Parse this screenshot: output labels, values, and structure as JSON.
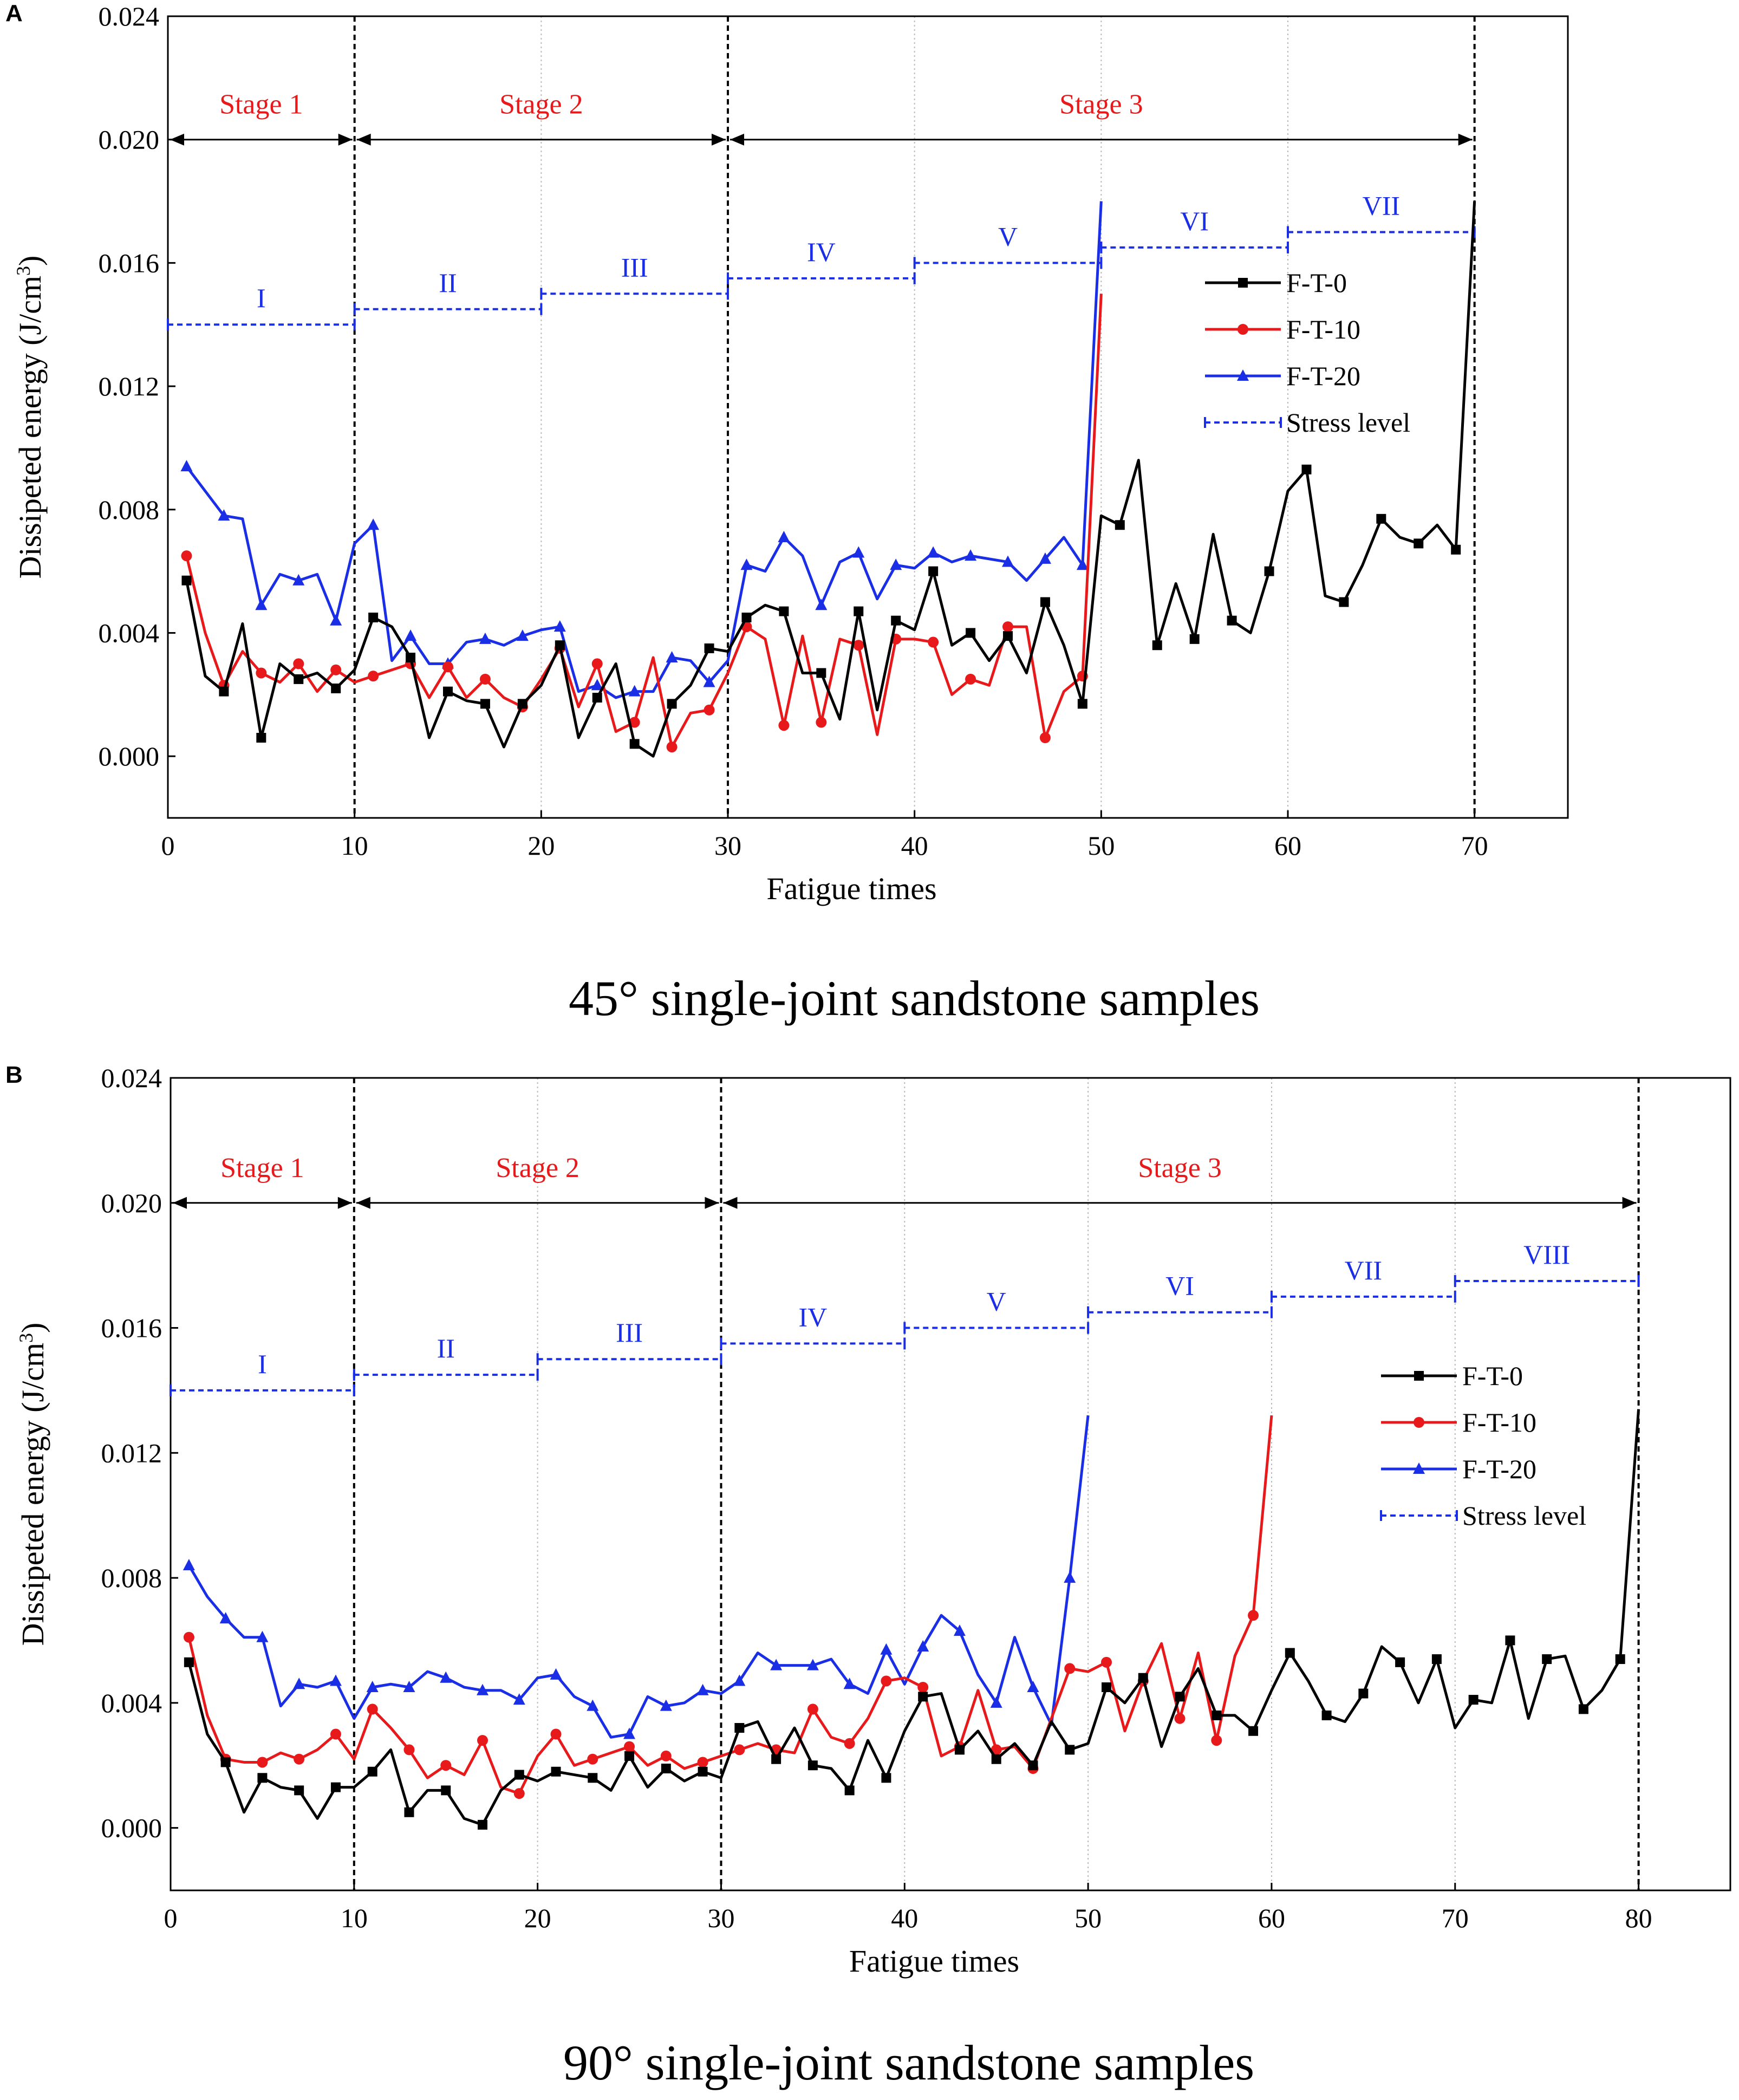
{
  "panels": [
    {
      "label": "A",
      "caption": "45° single-joint sandstone samples",
      "xlabel": "Fatigue times",
      "ylabel": "Dissipeted energy (J/cm",
      "ylabel_sup": "3",
      "ylabel_close": ")",
      "xlim": [
        0,
        75
      ],
      "ylim": [
        -0.002,
        0.024
      ],
      "xticks": [
        0,
        10,
        20,
        30,
        40,
        50,
        60,
        70
      ],
      "xtick_labels": [
        "0",
        "10",
        "20",
        "30",
        "40",
        "50",
        "60",
        "70"
      ],
      "yticks": [
        0.0,
        0.004,
        0.008,
        0.012,
        0.016,
        0.02,
        0.024
      ],
      "ytick_labels": [
        "0.000",
        "0.004",
        "0.008",
        "0.012",
        "0.016",
        "0.020",
        "0.024"
      ],
      "stage_boundaries": [
        10,
        30,
        70
      ],
      "minor_gridlines": [
        20,
        40,
        50,
        60
      ],
      "stages": [
        {
          "label": "Stage 1",
          "x0": 0,
          "x1": 10
        },
        {
          "label": "Stage 2",
          "x0": 10,
          "x1": 30
        },
        {
          "label": "Stage 3",
          "x0": 30,
          "x1": 70
        }
      ],
      "stress_levels": [
        {
          "label": "I",
          "x0": 0,
          "x1": 10,
          "y": 0.014
        },
        {
          "label": "II",
          "x0": 10,
          "x1": 20,
          "y": 0.0145
        },
        {
          "label": "III",
          "x0": 20,
          "x1": 30,
          "y": 0.015
        },
        {
          "label": "IV",
          "x0": 30,
          "x1": 40,
          "y": 0.0155
        },
        {
          "label": "V",
          "x0": 40,
          "x1": 50,
          "y": 0.016
        },
        {
          "label": "VI",
          "x0": 50,
          "x1": 60,
          "y": 0.0165
        },
        {
          "label": "VII",
          "x0": 60,
          "x1": 70,
          "y": 0.017
        }
      ],
      "legend": [
        "F-T-0",
        "F-T-10",
        "F-T-20",
        "Stress level"
      ],
      "legend_position": "center-right",
      "series": [
        {
          "name": "F-T-0",
          "color": "#000000",
          "marker": "square",
          "x": [
            1,
            2,
            3,
            4,
            5,
            6,
            7,
            8,
            9,
            10,
            11,
            12,
            13,
            14,
            15,
            16,
            17,
            18,
            19,
            20,
            21,
            22,
            23,
            24,
            25,
            26,
            27,
            28,
            29,
            30,
            31,
            32,
            33,
            34,
            35,
            36,
            37,
            38,
            39,
            40,
            41,
            42,
            43,
            44,
            45,
            46,
            47,
            48,
            49,
            50,
            51,
            52,
            53,
            54,
            55,
            56,
            57,
            58,
            59,
            60,
            61,
            62,
            63,
            64,
            65,
            66,
            67,
            68,
            69,
            70
          ],
          "y": [
            0.0057,
            0.0026,
            0.0021,
            0.0043,
            0.0006,
            0.003,
            0.0025,
            0.0027,
            0.0022,
            0.0028,
            0.0045,
            0.0042,
            0.0032,
            0.0006,
            0.0021,
            0.0018,
            0.0017,
            0.0003,
            0.0017,
            0.0023,
            0.0036,
            0.0006,
            0.0019,
            0.003,
            0.0004,
            0.0,
            0.0017,
            0.0023,
            0.0035,
            0.0034,
            0.0045,
            0.0049,
            0.0047,
            0.0027,
            0.0027,
            0.0012,
            0.0047,
            0.0015,
            0.0044,
            0.0041,
            0.006,
            0.0036,
            0.004,
            0.0031,
            0.0039,
            0.0027,
            0.005,
            0.0036,
            0.0017,
            0.0078,
            0.0075,
            0.0096,
            0.0036,
            0.0056,
            0.0038,
            0.0072,
            0.0044,
            0.004,
            0.006,
            0.0086,
            0.0093,
            0.0052,
            0.005,
            0.0062,
            0.0077,
            0.0071,
            0.0069,
            0.0075,
            0.0067,
            0.018
          ]
        },
        {
          "name": "F-T-10",
          "color": "#e8191b",
          "marker": "circle",
          "x": [
            1,
            2,
            3,
            4,
            5,
            6,
            7,
            8,
            9,
            10,
            11,
            12,
            13,
            14,
            15,
            16,
            17,
            18,
            19,
            20,
            21,
            22,
            23,
            24,
            25,
            26,
            27,
            28,
            29,
            30,
            31,
            32,
            33,
            34,
            35,
            36,
            37,
            38,
            39,
            40,
            41,
            42,
            43,
            44,
            45,
            46,
            47,
            48,
            49,
            50
          ],
          "y": [
            0.0065,
            0.004,
            0.0023,
            0.0034,
            0.0027,
            0.0024,
            0.003,
            0.0021,
            0.0028,
            0.0024,
            0.0026,
            0.0028,
            0.003,
            0.0019,
            0.0029,
            0.0019,
            0.0025,
            0.0019,
            0.0016,
            0.0025,
            0.0035,
            0.0016,
            0.003,
            0.0008,
            0.0011,
            0.0032,
            0.0003,
            0.0014,
            0.0015,
            0.0027,
            0.0042,
            0.0038,
            0.001,
            0.0039,
            0.0011,
            0.0038,
            0.0036,
            0.0007,
            0.0038,
            0.0038,
            0.0037,
            0.002,
            0.0025,
            0.0023,
            0.0042,
            0.0042,
            0.0006,
            0.0021,
            0.0026,
            0.015
          ]
        },
        {
          "name": "F-T-20",
          "color": "#1a2ee6",
          "marker": "triangle",
          "x": [
            1,
            2,
            3,
            4,
            5,
            6,
            7,
            8,
            9,
            10,
            11,
            12,
            13,
            14,
            15,
            16,
            17,
            18,
            19,
            20,
            21,
            22,
            23,
            24,
            25,
            26,
            27,
            28,
            29,
            30,
            31,
            32,
            33,
            34,
            35,
            36,
            37,
            38,
            39,
            40,
            41,
            42,
            43,
            44,
            45,
            46,
            47,
            48,
            49,
            50
          ],
          "y": [
            0.0094,
            0.0086,
            0.0078,
            0.0077,
            0.0049,
            0.0059,
            0.0057,
            0.0059,
            0.0044,
            0.0069,
            0.0075,
            0.0031,
            0.0039,
            0.003,
            0.003,
            0.0037,
            0.0038,
            0.0036,
            0.0039,
            0.0041,
            0.0042,
            0.0021,
            0.0023,
            0.0019,
            0.0021,
            0.0021,
            0.0032,
            0.0031,
            0.0024,
            0.0031,
            0.0062,
            0.006,
            0.0071,
            0.0065,
            0.0049,
            0.0063,
            0.0066,
            0.0051,
            0.0062,
            0.0061,
            0.0066,
            0.0063,
            0.0065,
            0.0064,
            0.0063,
            0.0057,
            0.0064,
            0.0071,
            0.0062,
            0.018
          ]
        }
      ]
    },
    {
      "label": "B",
      "caption": "90° single-joint sandstone samples",
      "xlabel": "Fatigue times",
      "ylabel": "Dissipeted energy (J/cm",
      "ylabel_sup": "3",
      "ylabel_close": ")",
      "xlim": [
        0,
        85
      ],
      "ylim": [
        -0.002,
        0.024
      ],
      "xticks": [
        0,
        10,
        20,
        30,
        40,
        50,
        60,
        70,
        80
      ],
      "xtick_labels": [
        "0",
        "10",
        "20",
        "30",
        "40",
        "50",
        "60",
        "70",
        "80"
      ],
      "yticks": [
        0.0,
        0.004,
        0.008,
        0.012,
        0.016,
        0.02,
        0.024
      ],
      "ytick_labels": [
        "0.000",
        "0.004",
        "0.008",
        "0.012",
        "0.016",
        "0.020",
        "0.024"
      ],
      "stage_boundaries": [
        10,
        30,
        80
      ],
      "minor_gridlines": [
        20,
        40,
        50,
        60,
        70
      ],
      "stages": [
        {
          "label": "Stage 1",
          "x0": 0,
          "x1": 10
        },
        {
          "label": "Stage 2",
          "x0": 10,
          "x1": 30
        },
        {
          "label": "Stage 3",
          "x0": 30,
          "x1": 80
        }
      ],
      "stress_levels": [
        {
          "label": "I",
          "x0": 0,
          "x1": 10,
          "y": 0.014
        },
        {
          "label": "II",
          "x0": 10,
          "x1": 20,
          "y": 0.0145
        },
        {
          "label": "III",
          "x0": 20,
          "x1": 30,
          "y": 0.015
        },
        {
          "label": "IV",
          "x0": 30,
          "x1": 40,
          "y": 0.0155
        },
        {
          "label": "V",
          "x0": 40,
          "x1": 50,
          "y": 0.016
        },
        {
          "label": "VI",
          "x0": 50,
          "x1": 60,
          "y": 0.0165
        },
        {
          "label": "VII",
          "x0": 60,
          "x1": 70,
          "y": 0.017
        },
        {
          "label": "VIII",
          "x0": 70,
          "x1": 80,
          "y": 0.0175
        }
      ],
      "legend": [
        "F-T-0",
        "F-T-10",
        "F-T-20",
        "Stress level"
      ],
      "legend_position": "center-right",
      "series": [
        {
          "name": "F-T-0",
          "color": "#000000",
          "marker": "square",
          "x": [
            1,
            2,
            3,
            4,
            5,
            6,
            7,
            8,
            9,
            10,
            11,
            12,
            13,
            14,
            15,
            16,
            17,
            18,
            19,
            20,
            21,
            22,
            23,
            24,
            25,
            26,
            27,
            28,
            29,
            30,
            31,
            32,
            33,
            34,
            35,
            36,
            37,
            38,
            39,
            40,
            41,
            42,
            43,
            44,
            45,
            46,
            47,
            48,
            49,
            50,
            51,
            52,
            53,
            54,
            55,
            56,
            57,
            58,
            59,
            60,
            61,
            62,
            63,
            64,
            65,
            66,
            67,
            68,
            69,
            70,
            71,
            72,
            73,
            74,
            75,
            76,
            77,
            78,
            79,
            80
          ],
          "y": [
            0.0053,
            0.003,
            0.0021,
            0.0005,
            0.0016,
            0.0013,
            0.0012,
            0.0003,
            0.0013,
            0.0013,
            0.0018,
            0.0025,
            0.0005,
            0.0012,
            0.0012,
            0.0003,
            0.0001,
            0.0012,
            0.0017,
            0.0015,
            0.0018,
            0.0017,
            0.0016,
            0.0012,
            0.0023,
            0.0013,
            0.0019,
            0.0015,
            0.0018,
            0.0016,
            0.0032,
            0.0034,
            0.0022,
            0.0032,
            0.002,
            0.0019,
            0.0012,
            0.0028,
            0.0016,
            0.0031,
            0.0042,
            0.0043,
            0.0025,
            0.0031,
            0.0022,
            0.0027,
            0.002,
            0.0034,
            0.0025,
            0.0027,
            0.0045,
            0.004,
            0.0048,
            0.0026,
            0.0042,
            0.0051,
            0.0036,
            0.0036,
            0.0031,
            0.0044,
            0.0056,
            0.0047,
            0.0036,
            0.0034,
            0.0043,
            0.0058,
            0.0053,
            0.004,
            0.0054,
            0.0032,
            0.0041,
            0.004,
            0.006,
            0.0035,
            0.0054,
            0.0055,
            0.0038,
            0.0044,
            0.0054,
            0.0134
          ]
        },
        {
          "name": "F-T-10",
          "color": "#e8191b",
          "marker": "circle",
          "x": [
            1,
            2,
            3,
            4,
            5,
            6,
            7,
            8,
            9,
            10,
            11,
            12,
            13,
            14,
            15,
            16,
            17,
            18,
            19,
            20,
            21,
            22,
            23,
            24,
            25,
            26,
            27,
            28,
            29,
            30,
            31,
            32,
            33,
            34,
            35,
            36,
            37,
            38,
            39,
            40,
            41,
            42,
            43,
            44,
            45,
            46,
            47,
            48,
            49,
            50,
            51,
            52,
            53,
            54,
            55,
            56,
            57,
            58,
            59,
            60
          ],
          "y": [
            0.0061,
            0.0036,
            0.0022,
            0.0021,
            0.0021,
            0.0024,
            0.0022,
            0.0025,
            0.003,
            0.0022,
            0.0038,
            0.0032,
            0.0025,
            0.0016,
            0.002,
            0.0017,
            0.0028,
            0.0013,
            0.0011,
            0.0023,
            0.003,
            0.002,
            0.0022,
            0.0024,
            0.0026,
            0.002,
            0.0023,
            0.0019,
            0.0021,
            0.0023,
            0.0025,
            0.0027,
            0.0025,
            0.0024,
            0.0038,
            0.0029,
            0.0027,
            0.0035,
            0.0047,
            0.0048,
            0.0045,
            0.0023,
            0.0026,
            0.0044,
            0.0025,
            0.0026,
            0.0019,
            0.0035,
            0.0051,
            0.005,
            0.0053,
            0.0031,
            0.0047,
            0.0059,
            0.0035,
            0.0056,
            0.0028,
            0.0055,
            0.0068,
            0.0132
          ]
        },
        {
          "name": "F-T-20",
          "color": "#1a2ee6",
          "marker": "triangle",
          "x": [
            1,
            2,
            3,
            4,
            5,
            6,
            7,
            8,
            9,
            10,
            11,
            12,
            13,
            14,
            15,
            16,
            17,
            18,
            19,
            20,
            21,
            22,
            23,
            24,
            25,
            26,
            27,
            28,
            29,
            30,
            31,
            32,
            33,
            34,
            35,
            36,
            37,
            38,
            39,
            40,
            41,
            42,
            43,
            44,
            45,
            46,
            47,
            48,
            49,
            50
          ],
          "y": [
            0.0084,
            0.0074,
            0.0067,
            0.0061,
            0.0061,
            0.0039,
            0.0046,
            0.0045,
            0.0047,
            0.0035,
            0.0045,
            0.0046,
            0.0045,
            0.005,
            0.0048,
            0.0045,
            0.0044,
            0.0044,
            0.0041,
            0.0048,
            0.0049,
            0.0042,
            0.0039,
            0.0029,
            0.003,
            0.0042,
            0.0039,
            0.004,
            0.0044,
            0.0043,
            0.0047,
            0.0056,
            0.0052,
            0.0052,
            0.0052,
            0.0054,
            0.0046,
            0.0043,
            0.0057,
            0.0046,
            0.0058,
            0.0068,
            0.0063,
            0.0049,
            0.004,
            0.0061,
            0.0045,
            0.0033,
            0.008,
            0.0132
          ]
        }
      ]
    }
  ]
}
